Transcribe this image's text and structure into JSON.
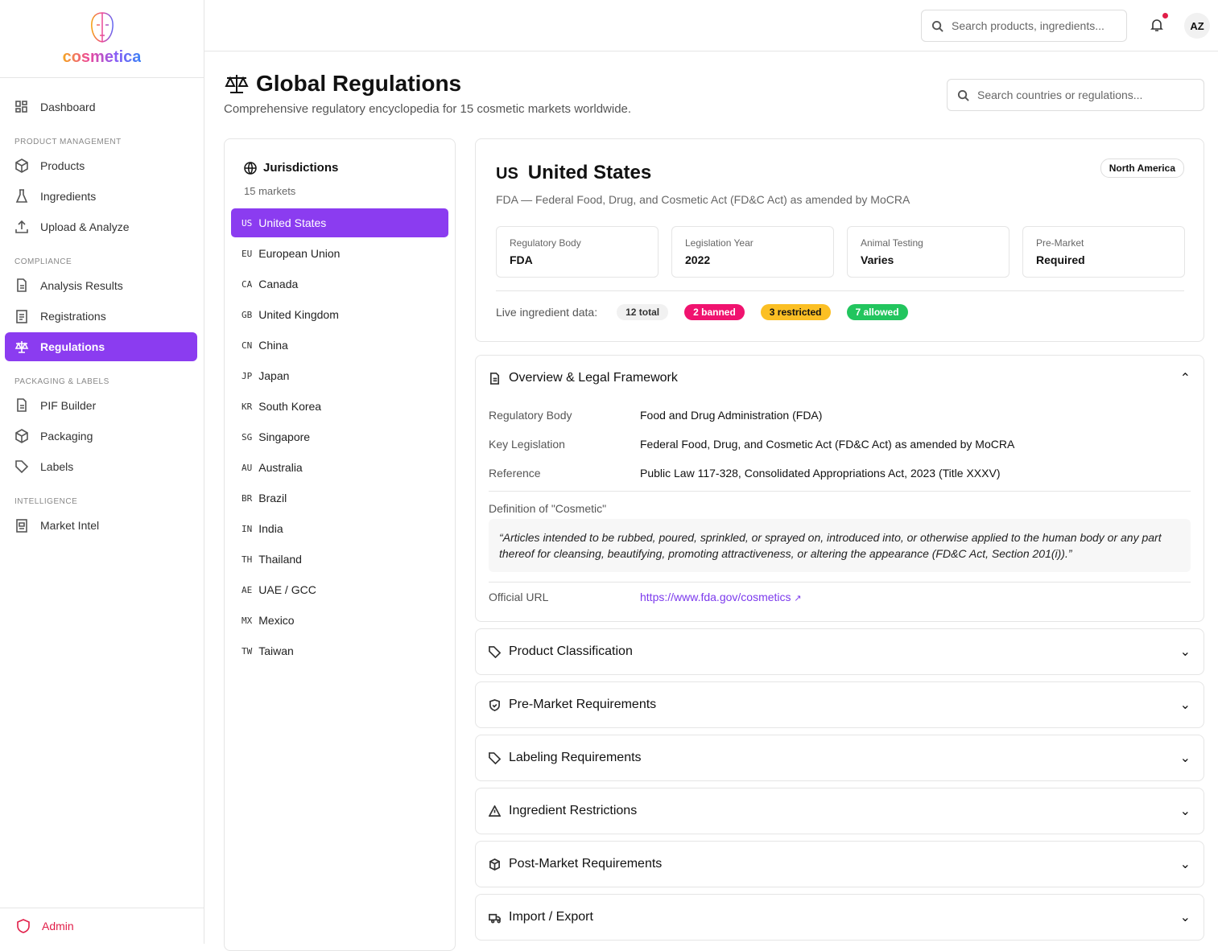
{
  "logo": {
    "text": "cosmetica"
  },
  "sidebar": {
    "dashboard": "Dashboard",
    "sections": [
      {
        "title": "PRODUCT MANAGEMENT",
        "items": [
          "Products",
          "Ingredients",
          "Upload & Analyze"
        ]
      },
      {
        "title": "COMPLIANCE",
        "items": [
          "Analysis Results",
          "Registrations",
          "Regulations"
        ]
      },
      {
        "title": "PACKAGING & LABELS",
        "items": [
          "PIF Builder",
          "Packaging",
          "Labels"
        ]
      },
      {
        "title": "INTELLIGENCE",
        "items": [
          "Market Intel"
        ]
      }
    ],
    "active": "Regulations",
    "admin": "Admin"
  },
  "topbar": {
    "search_placeholder": "Search products, ingredients...",
    "avatar": "AZ",
    "has_notification": true
  },
  "page": {
    "title": "Global Regulations",
    "subtitle": "Comprehensive regulatory encyclopedia for 15 cosmetic markets worldwide.",
    "search_placeholder": "Search countries or regulations..."
  },
  "jurisdictions": {
    "title": "Jurisdictions",
    "count": "15 markets",
    "items": [
      {
        "code": "US",
        "name": "United States"
      },
      {
        "code": "EU",
        "name": "European Union"
      },
      {
        "code": "CA",
        "name": "Canada"
      },
      {
        "code": "GB",
        "name": "United Kingdom"
      },
      {
        "code": "CN",
        "name": "China"
      },
      {
        "code": "JP",
        "name": "Japan"
      },
      {
        "code": "KR",
        "name": "South Korea"
      },
      {
        "code": "SG",
        "name": "Singapore"
      },
      {
        "code": "AU",
        "name": "Australia"
      },
      {
        "code": "BR",
        "name": "Brazil"
      },
      {
        "code": "IN",
        "name": "India"
      },
      {
        "code": "TH",
        "name": "Thailand"
      },
      {
        "code": "AE",
        "name": "UAE / GCC"
      },
      {
        "code": "MX",
        "name": "Mexico"
      },
      {
        "code": "TW",
        "name": "Taiwan"
      }
    ]
  },
  "country": {
    "code": "US",
    "name": "United States",
    "region": "North America",
    "subtitle": "FDA — Federal Food, Drug, and Cosmetic Act (FD&C Act) as amended by MoCRA",
    "stats": [
      {
        "label": "Regulatory Body",
        "value": "FDA"
      },
      {
        "label": "Legislation Year",
        "value": "2022"
      },
      {
        "label": "Animal Testing",
        "value": "Varies"
      },
      {
        "label": "Pre-Market",
        "value": "Required"
      }
    ],
    "live_label": "Live ingredient data:",
    "total": "12 total",
    "banned": "2 banned",
    "restricted": "3 restricted",
    "allowed": "7 allowed"
  },
  "overview": {
    "title": "Overview & Legal Framework",
    "rows": [
      {
        "k": "Regulatory Body",
        "v": "Food and Drug Administration (FDA)"
      },
      {
        "k": "Key Legislation",
        "v": "Federal Food, Drug, and Cosmetic Act (FD&C Act) as amended by MoCRA"
      },
      {
        "k": "Reference",
        "v": "Public Law 117-328, Consolidated Appropriations Act, 2023 (Title XXXV)"
      }
    ],
    "definition_label": "Definition of \"Cosmetic\"",
    "definition": "“Articles intended to be rubbed, poured, sprinkled, or sprayed on, introduced into, or otherwise applied to the human body or any part thereof for cleansing, beautifying, promoting attractiveness, or altering the appearance (FD&C Act, Section 201(i)).”",
    "url_label": "Official URL",
    "url": "https://www.fda.gov/cosmetics"
  },
  "sections": [
    "Product Classification",
    "Pre-Market Requirements",
    "Labeling Requirements",
    "Ingredient Restrictions",
    "Post-Market Requirements",
    "Import / Export"
  ],
  "colors": {
    "accent": "#8b3cf0",
    "banned": "#f0136f",
    "restricted": "#fbbf24",
    "allowed": "#22c55e"
  }
}
